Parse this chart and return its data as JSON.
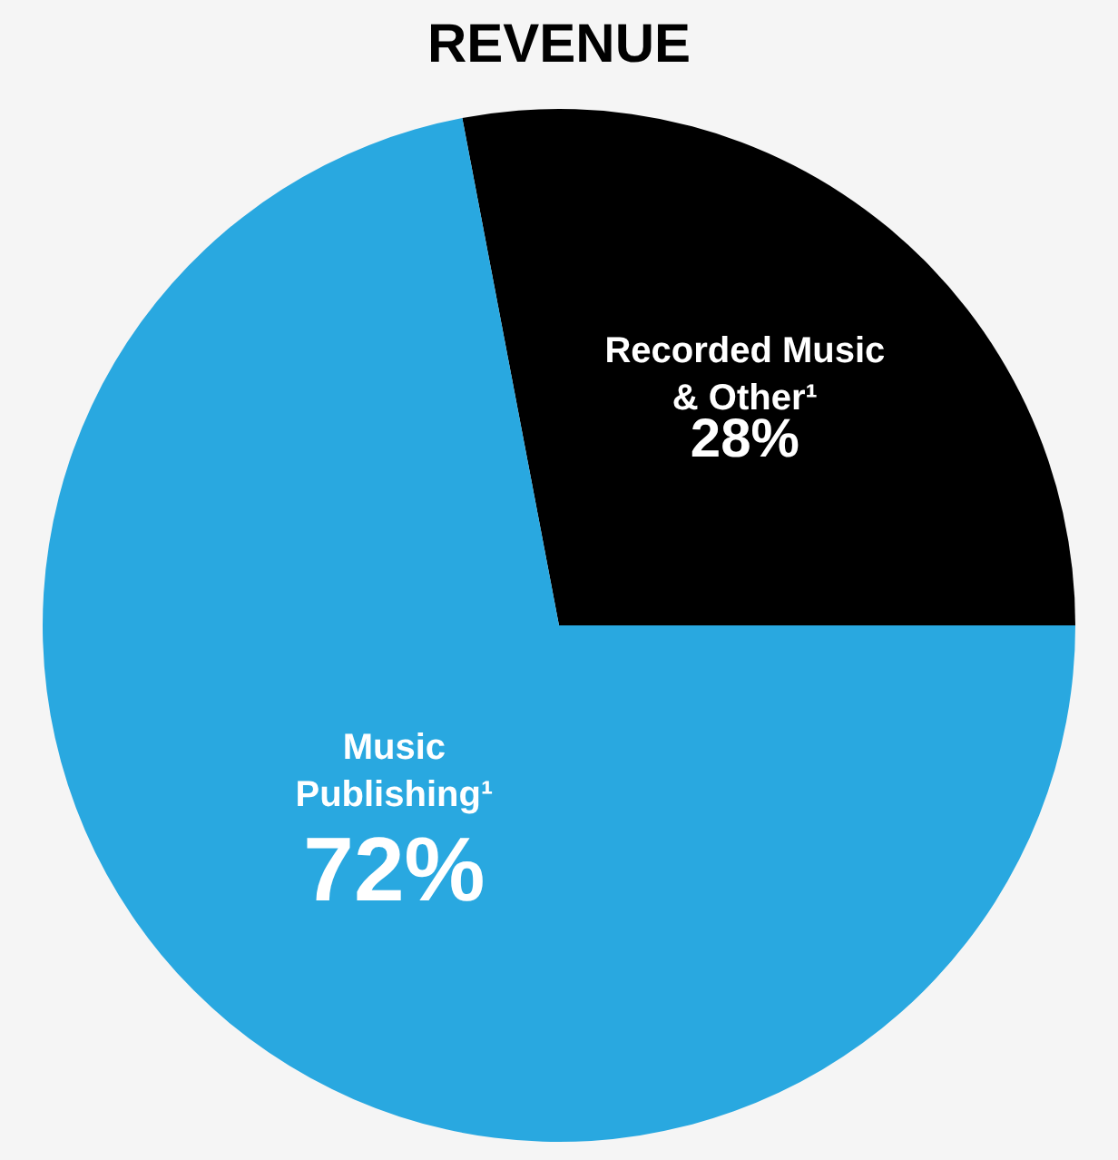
{
  "chart_data": {
    "type": "pie",
    "title": "REVENUE",
    "categories": [
      "Recorded Music & Other¹",
      "Music Publishing¹"
    ],
    "values": [
      28,
      72
    ],
    "colors": [
      "#000000",
      "#29a8e0"
    ],
    "value_labels": [
      "28%",
      "72%"
    ],
    "legend": false
  }
}
